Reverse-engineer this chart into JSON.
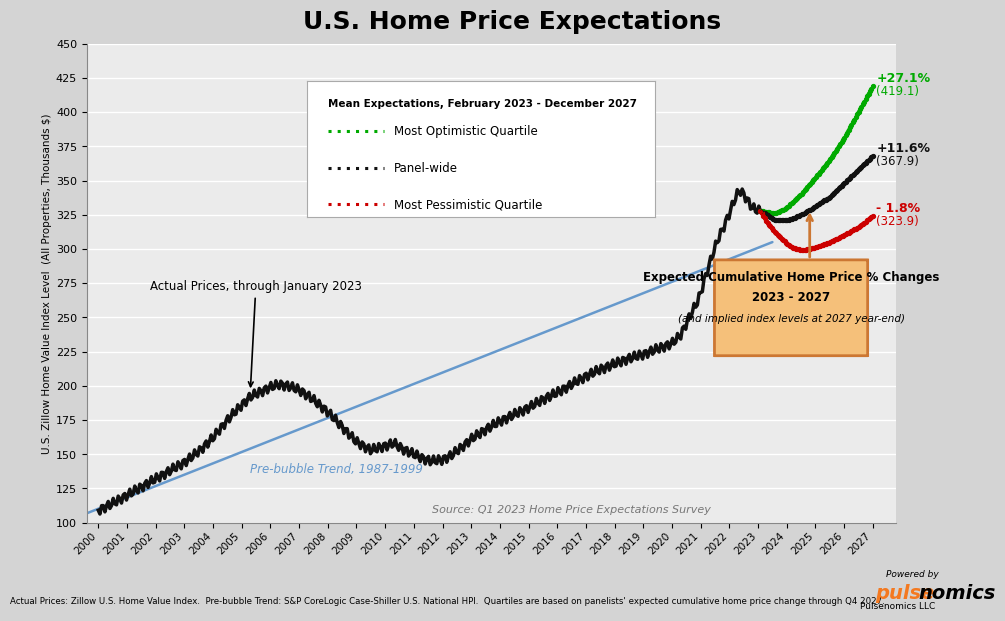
{
  "title": "U.S. Home Price Expectations",
  "ylabel": "U.S. Zillow Home Value Index Level  (All Properties, Thousands $)",
  "ylim": [
    100,
    450
  ],
  "background_color": "#d4d4d4",
  "plot_bg_color": "#ebebeb",
  "title_fontsize": 18,
  "source_text": "Source: Q1 2023 Home Price Expectations Survey",
  "footnote_text": "Actual Prices: Zillow U.S. Home Value Index.  Pre-bubble Trend: S&P CoreLogic Case-Shiller U.S. National HPI.  Quartiles are based on panelists' expected cumulative home price change through Q4 2027.",
  "prebubble_label": "Pre-bubble Trend, 1987-1999",
  "actual_label": "Actual Prices, through January 2023",
  "legend_title": "Mean Expectations, February 2023 - December 2027",
  "legend_optimistic": "Most Optimistic Quartile",
  "legend_panel": "Panel-wide",
  "legend_pessimistic": "Most Pessimistic Quartile",
  "box_title_line1": "Expected Cumulative Home Price % Changes",
  "box_title_line2": "2023 - 2027",
  "box_subtitle": "(and implied index levels at 2027 year-end)",
  "optimistic_color": "#00aa00",
  "panel_color": "#111111",
  "pessimistic_color": "#cc0000",
  "prebubble_color": "#6699cc",
  "actual_color": "#111111",
  "box_bg_color": "#f5c07a",
  "box_border_color": "#cc7733",
  "powered_color": "#f47920"
}
